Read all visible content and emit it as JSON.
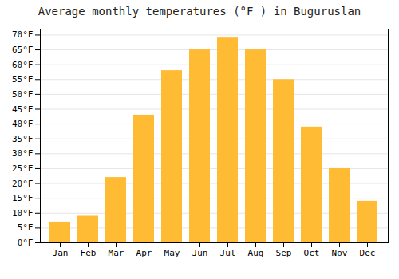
{
  "chart_data": {
    "type": "bar",
    "title": "Average monthly temperatures (°F ) in Buguruslan",
    "categories": [
      "Jan",
      "Feb",
      "Mar",
      "Apr",
      "May",
      "Jun",
      "Jul",
      "Aug",
      "Sep",
      "Oct",
      "Nov",
      "Dec"
    ],
    "values": [
      7,
      9,
      22,
      43,
      58,
      65,
      69,
      65,
      55,
      39,
      25,
      14
    ],
    "color": "#FFBB33",
    "ylim": [
      0,
      72
    ],
    "yticks": [
      {
        "value": 0,
        "label": "0°F"
      },
      {
        "value": 5,
        "label": "5°F"
      },
      {
        "value": 10,
        "label": "10°F"
      },
      {
        "value": 15,
        "label": "15°F"
      },
      {
        "value": 20,
        "label": "20°F"
      },
      {
        "value": 25,
        "label": "25°F"
      },
      {
        "value": 30,
        "label": "30°F"
      },
      {
        "value": 35,
        "label": "35°F"
      },
      {
        "value": 40,
        "label": "40°F"
      },
      {
        "value": 45,
        "label": "45°F"
      },
      {
        "value": 50,
        "label": "50°F"
      },
      {
        "value": 55,
        "label": "55°F"
      },
      {
        "value": 60,
        "label": "60°F"
      },
      {
        "value": 65,
        "label": "65°F"
      },
      {
        "value": 70,
        "label": "70°F"
      }
    ],
    "grid": true
  }
}
